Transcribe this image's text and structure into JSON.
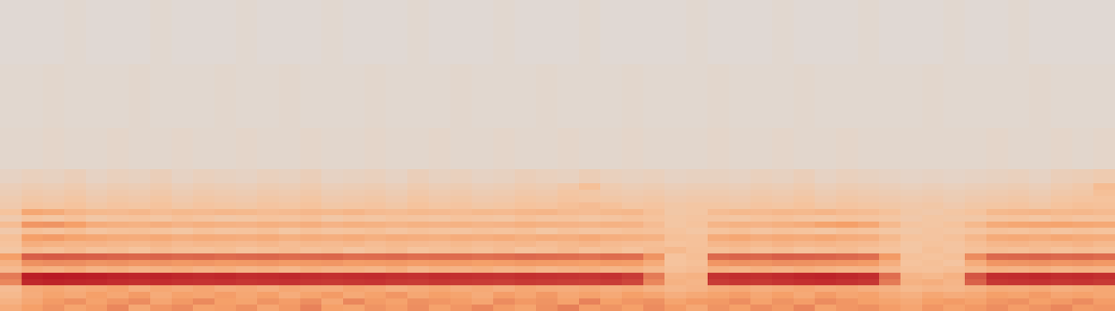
{
  "chart_data": {
    "type": "heatmap",
    "tick_labels": false,
    "grid": false,
    "xlim": [
      -0.5,
      51.5
    ],
    "ylim": [
      0,
      438
    ],
    "zlim": [
      0,
      100
    ],
    "x": [
      0,
      1,
      2,
      3,
      4,
      5,
      6,
      7,
      8,
      9,
      10,
      11,
      12,
      13,
      14,
      15,
      16,
      17,
      18,
      19,
      20,
      21,
      22,
      23,
      24,
      25,
      26,
      27,
      28,
      29,
      30,
      31,
      32,
      33,
      34,
      35,
      36,
      37,
      38,
      39,
      40,
      41,
      42,
      43,
      44,
      45,
      46,
      47,
      48,
      49,
      50,
      51
    ],
    "y": [
      4.5,
      13.5,
      22.5,
      31.5,
      40.5,
      49.5,
      58.5,
      67.5,
      76.5,
      85.5,
      94.5,
      103.5,
      112.5,
      121.5,
      130.5,
      139.5,
      148.5,
      157.5,
      166.5,
      175.5,
      184.5,
      215,
      300,
      395
    ],
    "z": [
      [
        34,
        40,
        45,
        38,
        42,
        50,
        36,
        44,
        48,
        39,
        41,
        46,
        37,
        43,
        52,
        40,
        38,
        45,
        41,
        47,
        39,
        44,
        50,
        42,
        38,
        46,
        53,
        41,
        45,
        40,
        48,
        42,
        36,
        45,
        40,
        47,
        43,
        51,
        39,
        44,
        46,
        41,
        37,
        44,
        39,
        43,
        47,
        41,
        45,
        50,
        42,
        44
      ],
      [
        30,
        36,
        42,
        46,
        39,
        44,
        48,
        37,
        43,
        49,
        40,
        38,
        45,
        41,
        47,
        36,
        50,
        42,
        39,
        46,
        44,
        41,
        37,
        48,
        43,
        45,
        39,
        52,
        40,
        44,
        46,
        38,
        42,
        43,
        47,
        39,
        45,
        41,
        48,
        44,
        40,
        38,
        35,
        40,
        42,
        39,
        44,
        46,
        40,
        43,
        48,
        41
      ],
      [
        26,
        33,
        38,
        35,
        40,
        36,
        42,
        34,
        39,
        37,
        41,
        36,
        40,
        33,
        38,
        42,
        35,
        39,
        44,
        36,
        40,
        38,
        34,
        41,
        37,
        43,
        36,
        39,
        35,
        40,
        37,
        32,
        35,
        38,
        41,
        36,
        40,
        35,
        42,
        37,
        39,
        34,
        31,
        36,
        33,
        35,
        40,
        38,
        42,
        37,
        39,
        36
      ],
      [
        24,
        34,
        36,
        33,
        35,
        38,
        32,
        36,
        34,
        37,
        33,
        35,
        32,
        36,
        34,
        33,
        37,
        35,
        31,
        34,
        36,
        33,
        35,
        32,
        36,
        34,
        33,
        35,
        32,
        34,
        30,
        27,
        29,
        33,
        35,
        32,
        34,
        36,
        33,
        35,
        32,
        30,
        26,
        28,
        27,
        30,
        34,
        33,
        35,
        32,
        34,
        36
      ],
      [
        50,
        88,
        90,
        89,
        88,
        86,
        85,
        86,
        84,
        83,
        84,
        82,
        83,
        84,
        82,
        81,
        82,
        83,
        81,
        80,
        82,
        81,
        80,
        79,
        81,
        80,
        79,
        78,
        80,
        76,
        50,
        30,
        28,
        80,
        82,
        81,
        83,
        85,
        86,
        84,
        82,
        55,
        30,
        32,
        28,
        65,
        82,
        83,
        84,
        82,
        83,
        81
      ],
      [
        55,
        92,
        94,
        93,
        92,
        90,
        89,
        90,
        88,
        87,
        88,
        86,
        87,
        88,
        86,
        85,
        86,
        87,
        85,
        84,
        86,
        85,
        84,
        83,
        85,
        84,
        83,
        82,
        84,
        80,
        55,
        28,
        30,
        84,
        86,
        85,
        87,
        89,
        90,
        88,
        86,
        60,
        28,
        26,
        30,
        70,
        86,
        87,
        88,
        86,
        87,
        85
      ],
      [
        25,
        32,
        30,
        33,
        29,
        31,
        28,
        30,
        32,
        29,
        31,
        28,
        30,
        27,
        31,
        29,
        30,
        28,
        32,
        27,
        30,
        29,
        31,
        28,
        30,
        27,
        29,
        31,
        28,
        30,
        26,
        22,
        24,
        30,
        28,
        31,
        29,
        32,
        30,
        28,
        29,
        25,
        22,
        21,
        23,
        26,
        30,
        29,
        31,
        28,
        30,
        29
      ],
      [
        30,
        46,
        48,
        47,
        45,
        46,
        44,
        45,
        43,
        44,
        42,
        43,
        44,
        42,
        43,
        44,
        41,
        42,
        43,
        41,
        42,
        42,
        40,
        41,
        43,
        42,
        41,
        40,
        42,
        41,
        34,
        20,
        22,
        44,
        46,
        45,
        47,
        46,
        45,
        44,
        42,
        32,
        20,
        22,
        19,
        33,
        44,
        45,
        46,
        44,
        45,
        43
      ],
      [
        40,
        66,
        68,
        67,
        66,
        64,
        63,
        64,
        62,
        63,
        61,
        62,
        63,
        61,
        62,
        63,
        60,
        61,
        62,
        60,
        61,
        61,
        59,
        60,
        62,
        61,
        60,
        58,
        61,
        60,
        45,
        20,
        23,
        62,
        64,
        63,
        66,
        65,
        64,
        62,
        60,
        42,
        21,
        20,
        22,
        48,
        62,
        63,
        64,
        62,
        63,
        61
      ],
      [
        18,
        24,
        22,
        25,
        21,
        23,
        20,
        24,
        22,
        21,
        23,
        20,
        22,
        24,
        21,
        23,
        19,
        22,
        24,
        20,
        22,
        23,
        21,
        24,
        20,
        22,
        25,
        21,
        23,
        20,
        24,
        26,
        22,
        22,
        24,
        21,
        23,
        20,
        22,
        24,
        21,
        20,
        18,
        22,
        19,
        21,
        23,
        22,
        24,
        21,
        23,
        22
      ],
      [
        20,
        32,
        30,
        28,
        29,
        27,
        26,
        28,
        25,
        27,
        26,
        25,
        27,
        24,
        26,
        25,
        27,
        24,
        26,
        25,
        24,
        26,
        24,
        25,
        27,
        24,
        26,
        28,
        25,
        24,
        23,
        20,
        21,
        27,
        28,
        26,
        29,
        27,
        28,
        26,
        25,
        22,
        18,
        20,
        19,
        23,
        27,
        28,
        26,
        27,
        29,
        26
      ],
      [
        22,
        40,
        42,
        38,
        36,
        34,
        33,
        35,
        32,
        34,
        33,
        32,
        34,
        31,
        33,
        32,
        34,
        31,
        33,
        32,
        31,
        33,
        32,
        34,
        31,
        33,
        32,
        35,
        32,
        31,
        30,
        22,
        21,
        34,
        36,
        33,
        35,
        34,
        36,
        33,
        32,
        26,
        20,
        19,
        21,
        27,
        34,
        35,
        33,
        36,
        34,
        33
      ],
      [
        16,
        22,
        20,
        23,
        19,
        21,
        22,
        20,
        18,
        21,
        19,
        20,
        22,
        18,
        21,
        19,
        20,
        22,
        19,
        21,
        20,
        19,
        21,
        20,
        22,
        18,
        21,
        19,
        20,
        22,
        21,
        20,
        18,
        20,
        22,
        19,
        21,
        20,
        18,
        21,
        20,
        18,
        17,
        19,
        18,
        19,
        21,
        20,
        22,
        19,
        21,
        20
      ],
      [
        24,
        44,
        45,
        40,
        33,
        31,
        30,
        32,
        29,
        31,
        30,
        29,
        31,
        30,
        32,
        29,
        31,
        30,
        28,
        30,
        29,
        30,
        28,
        29,
        31,
        30,
        29,
        28,
        30,
        29,
        24,
        18,
        20,
        28,
        30,
        29,
        31,
        33,
        38,
        40,
        36,
        26,
        19,
        18,
        20,
        26,
        34,
        36,
        37,
        38,
        36,
        35
      ],
      [
        15,
        20,
        18,
        21,
        17,
        19,
        20,
        18,
        21,
        19,
        17,
        18,
        20,
        19,
        21,
        17,
        19,
        18,
        20,
        19,
        18,
        20,
        19,
        18,
        21,
        19,
        20,
        18,
        19,
        21,
        20,
        18,
        19,
        19,
        18,
        20,
        21,
        19,
        18,
        20,
        19,
        18,
        16,
        18,
        17,
        17,
        19,
        20,
        18,
        21,
        19,
        20
      ],
      [
        20,
        36,
        34,
        28,
        26,
        25,
        27,
        24,
        26,
        25,
        27,
        26,
        24,
        25,
        27,
        26,
        28,
        25,
        24,
        26,
        25,
        24,
        26,
        25,
        27,
        28,
        25,
        24,
        26,
        27,
        22,
        17,
        18,
        24,
        26,
        25,
        27,
        26,
        28,
        25,
        24,
        21,
        17,
        16,
        18,
        20,
        26,
        27,
        28,
        26,
        27,
        25
      ],
      [
        15,
        19,
        18,
        20,
        17,
        19,
        18,
        20,
        17,
        19,
        18,
        17,
        19,
        18,
        20,
        17,
        18,
        19,
        17,
        20,
        18,
        19,
        17,
        18,
        20,
        19,
        22,
        24,
        21,
        18,
        19,
        17,
        18,
        18,
        17,
        19,
        18,
        20,
        17,
        19,
        18,
        17,
        16,
        17,
        15,
        17,
        18,
        19,
        17,
        20,
        22,
        21
      ],
      [
        14,
        17,
        16,
        18,
        15,
        17,
        16,
        18,
        15,
        17,
        16,
        15,
        17,
        16,
        18,
        15,
        16,
        17,
        15,
        18,
        16,
        17,
        15,
        16,
        18,
        17,
        19,
        18,
        17,
        16,
        17,
        15,
        16,
        16,
        15,
        17,
        16,
        18,
        15,
        17,
        16,
        15,
        14,
        15,
        13,
        15,
        16,
        17,
        15,
        18,
        19,
        20
      ],
      [
        12,
        15,
        14,
        16,
        13,
        15,
        14,
        16,
        13,
        15,
        14,
        13,
        15,
        14,
        16,
        13,
        14,
        15,
        13,
        16,
        14,
        15,
        13,
        14,
        16,
        15,
        18,
        17,
        15,
        14,
        15,
        13,
        14,
        14,
        13,
        15,
        14,
        16,
        13,
        15,
        14,
        13,
        12,
        13,
        12,
        13,
        14,
        15,
        13,
        16,
        17,
        22
      ],
      [
        11,
        13,
        12,
        14,
        11,
        13,
        12,
        14,
        11,
        13,
        12,
        11,
        13,
        12,
        14,
        11,
        12,
        13,
        11,
        14,
        12,
        13,
        11,
        12,
        14,
        13,
        16,
        22,
        14,
        12,
        13,
        11,
        12,
        12,
        11,
        13,
        12,
        14,
        11,
        13,
        12,
        11,
        10,
        11,
        10,
        11,
        12,
        13,
        11,
        14,
        16,
        24
      ],
      [
        8,
        10,
        9,
        11,
        8,
        10,
        9,
        11,
        8,
        10,
        9,
        8,
        10,
        9,
        11,
        8,
        9,
        10,
        8,
        11,
        9,
        10,
        8,
        9,
        11,
        10,
        9,
        12,
        10,
        9,
        10,
        8,
        9,
        9,
        8,
        10,
        9,
        11,
        8,
        10,
        9,
        8,
        7,
        8,
        7,
        8,
        9,
        10,
        8,
        11,
        12,
        14
      ],
      [
        5,
        5,
        6,
        5,
        5,
        6,
        5,
        5,
        6,
        5,
        5,
        6,
        5,
        5,
        6,
        5,
        5,
        6,
        5,
        5,
        6,
        5,
        5,
        6,
        5,
        5,
        6,
        5,
        5,
        6,
        5,
        5,
        5,
        6,
        5,
        5,
        6,
        5,
        5,
        6,
        5,
        5,
        5,
        5,
        5,
        5,
        6,
        5,
        5,
        6,
        5,
        6
      ],
      [
        4,
        4,
        5,
        4,
        4,
        4,
        5,
        4,
        4,
        4,
        5,
        4,
        4,
        5,
        4,
        4,
        4,
        5,
        4,
        4,
        4,
        5,
        4,
        4,
        4,
        5,
        4,
        4,
        4,
        5,
        4,
        4,
        4,
        5,
        4,
        4,
        4,
        5,
        4,
        4,
        4,
        4,
        4,
        5,
        4,
        4,
        4,
        4,
        5,
        4,
        4,
        4
      ],
      [
        3,
        3,
        3,
        4,
        3,
        3,
        3,
        4,
        3,
        3,
        3,
        4,
        3,
        3,
        3,
        4,
        3,
        3,
        3,
        4,
        3,
        3,
        3,
        4,
        3,
        3,
        3,
        4,
        3,
        3,
        3,
        3,
        4,
        3,
        3,
        3,
        4,
        3,
        3,
        3,
        4,
        3,
        3,
        3,
        4,
        3,
        3,
        4,
        3,
        3,
        3,
        3
      ]
    ]
  }
}
